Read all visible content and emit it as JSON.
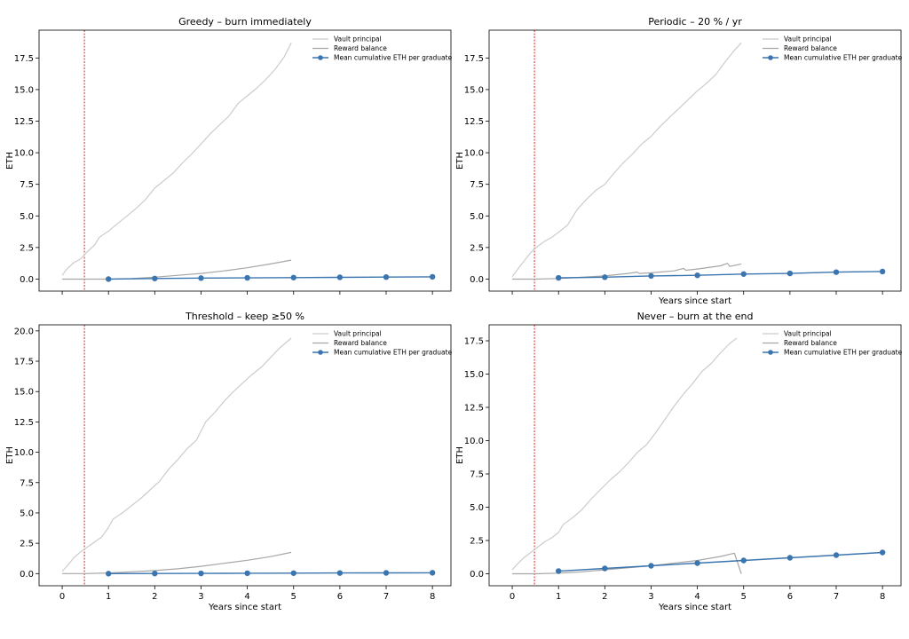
{
  "chart_data": [
    {
      "type": "line",
      "title": "Greedy – burn immediately",
      "xlabel": "",
      "ylabel": "ETH",
      "xlim": [
        -0.5,
        8.4
      ],
      "ylim": [
        -0.95,
        19.7
      ],
      "xticks": [
        0,
        1,
        2,
        3,
        4,
        5,
        6,
        7,
        8
      ],
      "yticks": [
        "0.0",
        "2.5",
        "5.0",
        "7.5",
        "10.0",
        "12.5",
        "15.0",
        "17.5"
      ],
      "xtick_labels_visible": false,
      "vline_x": 0.48,
      "legend": "top-right",
      "series": [
        {
          "name": "Vault principal",
          "style": "light-grey-line",
          "x": [
            0,
            0.1,
            0.25,
            0.4,
            0.55,
            0.7,
            0.8,
            1.0,
            1.2,
            1.4,
            1.6,
            1.8,
            2.0,
            2.2,
            2.4,
            2.6,
            2.8,
            3.0,
            3.2,
            3.4,
            3.6,
            3.8,
            4.0,
            4.2,
            4.4,
            4.6,
            4.8,
            4.95
          ],
          "y": [
            0.3,
            0.8,
            1.3,
            1.6,
            2.2,
            2.7,
            3.3,
            3.8,
            4.4,
            5.0,
            5.6,
            6.3,
            7.2,
            7.8,
            8.4,
            9.2,
            9.9,
            10.7,
            11.5,
            12.2,
            12.9,
            13.9,
            14.5,
            15.1,
            15.8,
            16.6,
            17.6,
            18.7
          ]
        },
        {
          "name": "Reward balance",
          "style": "grey-line",
          "x": [
            0,
            0.5,
            1,
            1.5,
            2,
            2.5,
            3,
            3.5,
            4,
            4.5,
            4.95
          ],
          "y": [
            0,
            0.0,
            0.0,
            0.05,
            0.15,
            0.3,
            0.45,
            0.65,
            0.9,
            1.2,
            1.5
          ]
        },
        {
          "name": "Mean cumulative ETH per graduate",
          "style": "blue-markers",
          "x": [
            1,
            2,
            3,
            4,
            5,
            6,
            7,
            8
          ],
          "y": [
            0.0,
            0.05,
            0.08,
            0.1,
            0.12,
            0.14,
            0.16,
            0.18
          ]
        }
      ]
    },
    {
      "type": "line",
      "title": "Periodic – 20 % / yr",
      "xlabel": "Years since start",
      "ylabel": "ETH",
      "xlim": [
        -0.5,
        8.4
      ],
      "ylim": [
        -0.95,
        19.7
      ],
      "xticks": [
        0,
        1,
        2,
        3,
        4,
        5,
        6,
        7,
        8
      ],
      "yticks": [
        "0.0",
        "2.5",
        "5.0",
        "7.5",
        "10.0",
        "12.5",
        "15.0",
        "17.5"
      ],
      "xtick_labels_visible": false,
      "vline_x": 0.48,
      "legend": "top-right",
      "series": [
        {
          "name": "Vault principal",
          "style": "light-grey-line",
          "x": [
            0,
            0.1,
            0.25,
            0.4,
            0.55,
            0.7,
            0.85,
            1.0,
            1.2,
            1.4,
            1.6,
            1.8,
            2.0,
            2.2,
            2.4,
            2.6,
            2.8,
            3.0,
            3.2,
            3.4,
            3.6,
            3.8,
            4.0,
            4.2,
            4.4,
            4.6,
            4.8,
            4.95
          ],
          "y": [
            0.2,
            0.7,
            1.4,
            2.1,
            2.6,
            3.0,
            3.3,
            3.7,
            4.3,
            5.5,
            6.3,
            7.0,
            7.5,
            8.4,
            9.2,
            9.9,
            10.7,
            11.3,
            12.1,
            12.8,
            13.5,
            14.2,
            14.9,
            15.5,
            16.2,
            17.2,
            18.1,
            18.7
          ]
        },
        {
          "name": "Reward balance",
          "style": "grey-line",
          "x": [
            0,
            0.5,
            1,
            1.5,
            2,
            2.5,
            2.7,
            2.75,
            3,
            3.5,
            3.7,
            3.75,
            4,
            4.5,
            4.65,
            4.7,
            4.95
          ],
          "y": [
            0,
            0.0,
            0.05,
            0.15,
            0.25,
            0.45,
            0.55,
            0.45,
            0.5,
            0.65,
            0.85,
            0.7,
            0.8,
            1.05,
            1.25,
            1.0,
            1.2
          ]
        },
        {
          "name": "Mean cumulative ETH per graduate",
          "style": "blue-markers",
          "x": [
            1,
            2,
            3,
            4,
            5,
            6,
            7,
            8
          ],
          "y": [
            0.1,
            0.15,
            0.25,
            0.3,
            0.4,
            0.45,
            0.55,
            0.6
          ]
        }
      ]
    },
    {
      "type": "line",
      "title": "Threshold – keep ≥50 %",
      "xlabel": "Years since start",
      "ylabel": "ETH",
      "xlim": [
        -0.5,
        8.4
      ],
      "ylim": [
        -1.0,
        20.5
      ],
      "xticks": [
        0,
        1,
        2,
        3,
        4,
        5,
        6,
        7,
        8
      ],
      "yticks": [
        "0.0",
        "2.5",
        "5.0",
        "7.5",
        "10.0",
        "12.5",
        "15.0",
        "17.5",
        "20.0"
      ],
      "xtick_labels_visible": true,
      "vline_x": 0.48,
      "legend": "top-right",
      "series": [
        {
          "name": "Vault principal",
          "style": "light-grey-line",
          "x": [
            0,
            0.1,
            0.25,
            0.4,
            0.55,
            0.7,
            0.85,
            1.0,
            1.1,
            1.3,
            1.5,
            1.7,
            1.9,
            2.1,
            2.3,
            2.5,
            2.7,
            2.9,
            3.1,
            3.3,
            3.5,
            3.7,
            3.9,
            4.1,
            4.3,
            4.5,
            4.7,
            4.95
          ],
          "y": [
            0.2,
            0.6,
            1.3,
            1.8,
            2.2,
            2.6,
            3.0,
            3.8,
            4.5,
            5.0,
            5.6,
            6.2,
            6.9,
            7.6,
            8.6,
            9.4,
            10.3,
            11.0,
            12.5,
            13.3,
            14.2,
            15.0,
            15.7,
            16.4,
            17.0,
            17.8,
            18.6,
            19.4
          ]
        },
        {
          "name": "Reward balance",
          "style": "grey-line",
          "x": [
            0,
            0.5,
            1,
            1.5,
            2,
            2.5,
            3,
            3.5,
            4,
            4.5,
            4.95
          ],
          "y": [
            0,
            0.0,
            0.05,
            0.15,
            0.25,
            0.4,
            0.6,
            0.85,
            1.1,
            1.4,
            1.75
          ]
        },
        {
          "name": "Mean cumulative ETH per graduate",
          "style": "blue-markers",
          "x": [
            1,
            2,
            3,
            4,
            5,
            6,
            7,
            8
          ],
          "y": [
            0.0,
            0.01,
            0.02,
            0.03,
            0.04,
            0.05,
            0.06,
            0.07
          ]
        }
      ]
    },
    {
      "type": "line",
      "title": "Never – burn at the end",
      "xlabel": "Years since start",
      "ylabel": "ETH",
      "xlim": [
        -0.5,
        8.4
      ],
      "ylim": [
        -0.9,
        18.7
      ],
      "xticks": [
        0,
        1,
        2,
        3,
        4,
        5,
        6,
        7,
        8
      ],
      "yticks": [
        "0.0",
        "2.5",
        "5.0",
        "7.5",
        "10.0",
        "12.5",
        "15.0",
        "17.5"
      ],
      "xtick_labels_visible": true,
      "vline_x": 0.48,
      "legend": "top-right",
      "series": [
        {
          "name": "Vault principal",
          "style": "light-grey-line",
          "x": [
            0,
            0.1,
            0.25,
            0.4,
            0.55,
            0.7,
            0.85,
            1.0,
            1.1,
            1.3,
            1.5,
            1.7,
            1.9,
            2.1,
            2.3,
            2.5,
            2.7,
            2.9,
            3.1,
            3.3,
            3.5,
            3.7,
            3.9,
            4.1,
            4.3,
            4.5,
            4.7,
            4.85
          ],
          "y": [
            0.3,
            0.7,
            1.2,
            1.6,
            2.0,
            2.4,
            2.7,
            3.1,
            3.7,
            4.2,
            4.8,
            5.6,
            6.3,
            7.0,
            7.6,
            8.3,
            9.1,
            9.7,
            10.6,
            11.6,
            12.6,
            13.5,
            14.3,
            15.2,
            15.8,
            16.6,
            17.3,
            17.7
          ]
        },
        {
          "name": "Reward balance",
          "style": "grey-line",
          "x": [
            0,
            0.5,
            1,
            1.5,
            2,
            2.5,
            3,
            3.5,
            4,
            4.5,
            4.8,
            4.95
          ],
          "y": [
            0,
            0.0,
            0.05,
            0.15,
            0.3,
            0.45,
            0.6,
            0.8,
            1.0,
            1.3,
            1.55,
            0.0
          ]
        },
        {
          "name": "Mean cumulative ETH per graduate",
          "style": "blue-markers",
          "x": [
            1,
            2,
            3,
            4,
            5,
            6,
            7,
            8
          ],
          "y": [
            0.2,
            0.4,
            0.6,
            0.8,
            1.0,
            1.2,
            1.4,
            1.6
          ]
        }
      ]
    }
  ],
  "colors": {
    "vault": "#cccccc",
    "reward": "#a6a6a6",
    "mean": "#3b75af",
    "vline": "#d62728",
    "axes": "#000000"
  }
}
